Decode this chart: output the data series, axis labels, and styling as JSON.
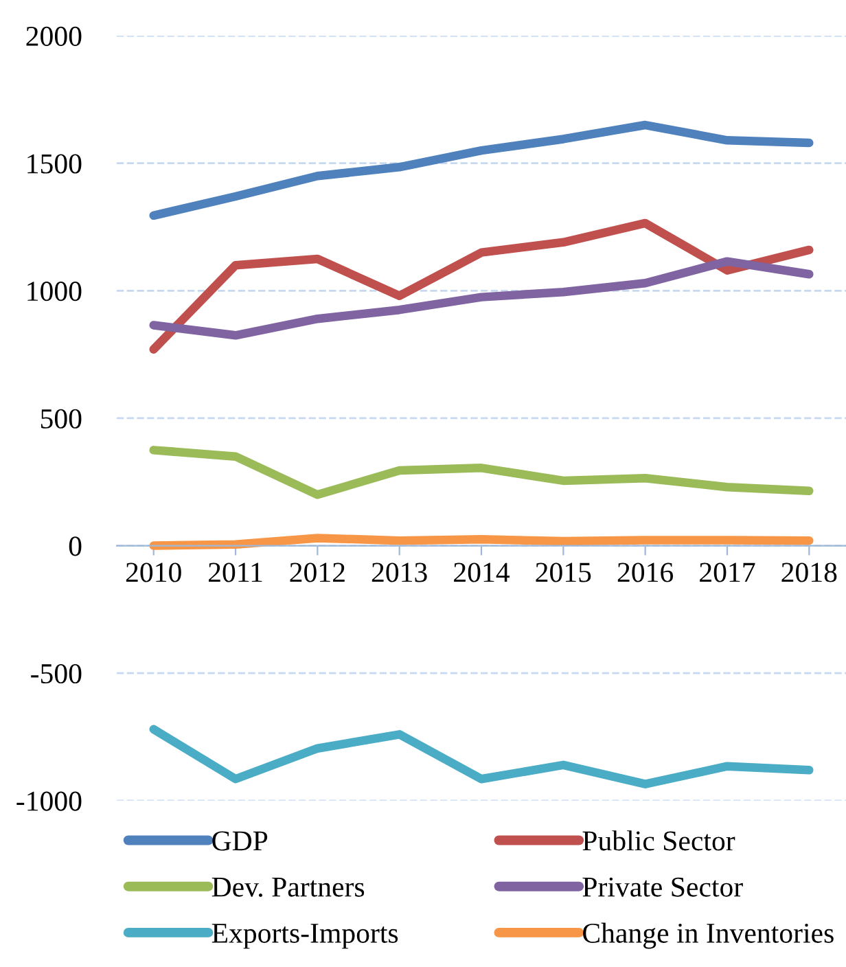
{
  "chart_data": {
    "type": "line",
    "categories": [
      "2010",
      "2011",
      "2012",
      "2013",
      "2014",
      "2015",
      "2016",
      "2017",
      "2018"
    ],
    "series": [
      {
        "name": "GDP",
        "color": "#4f81bd",
        "values": [
          1295,
          1370,
          1450,
          1485,
          1550,
          1595,
          1650,
          1590,
          1580
        ]
      },
      {
        "name": "Public Sector",
        "color": "#c0504d",
        "values": [
          770,
          1100,
          1125,
          980,
          1150,
          1190,
          1265,
          1080,
          1160
        ]
      },
      {
        "name": "Dev. Partners",
        "color": "#9bbb59",
        "values": [
          375,
          350,
          200,
          295,
          305,
          255,
          265,
          230,
          215
        ]
      },
      {
        "name": "Private Sector",
        "color": "#8064a2",
        "values": [
          865,
          825,
          890,
          925,
          975,
          995,
          1030,
          1115,
          1065
        ]
      },
      {
        "name": "Exports-Imports",
        "color": "#4bacc6",
        "values": [
          -720,
          -915,
          -795,
          -740,
          -915,
          -860,
          -935,
          -865,
          -880
        ]
      },
      {
        "name": "Change in Inventories",
        "color": "#f79646",
        "values": [
          0,
          5,
          30,
          20,
          25,
          18,
          22,
          22,
          20
        ]
      }
    ],
    "ylim": [
      -1000,
      2000
    ],
    "yticks": [
      -1000,
      -500,
      0,
      500,
      1000,
      1500,
      2000
    ],
    "grid": "y",
    "legend": "bottom",
    "marker": "none",
    "line_style": "solid"
  }
}
